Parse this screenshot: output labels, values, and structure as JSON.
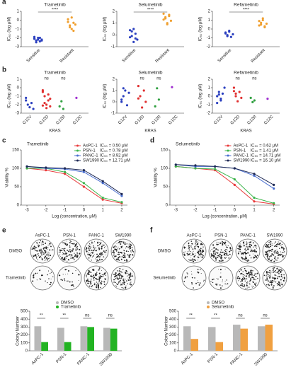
{
  "chart_data": [
    {
      "type": "dot",
      "label": "a",
      "title": "Trametinib",
      "ylabel": "IC₅₀ (log μM)",
      "categories": [
        "Sensitive",
        "Resistant"
      ],
      "values": [
        [
          -2.1,
          -2.3,
          -2.0,
          -2.4,
          -2.2,
          -1.9,
          -2.5,
          -2.2,
          -2.0,
          -2.3,
          -2.1
        ],
        [
          -0.2,
          -0.8,
          0.3,
          -1.2,
          -0.5,
          0.1,
          -0.6,
          -1.0,
          -0.3
        ]
      ],
      "colors": [
        "#2a3fbf",
        "#f0a030"
      ],
      "ylim": [
        -3,
        1
      ],
      "yticks": [
        -3,
        -2,
        -1,
        0,
        1
      ],
      "annotation": "****"
    },
    {
      "type": "dot",
      "title": "Selumetinib",
      "ylabel": "IC₅₀ (log μM)",
      "categories": [
        "Sensitive",
        "Resistant"
      ],
      "values": [
        [
          -0.2,
          0.3,
          -0.6,
          0.1,
          -0.4,
          0.4,
          -0.1,
          0.5,
          -0.3
        ],
        [
          1.8,
          1.4,
          1.0,
          1.6,
          1.2,
          1.3,
          1.5,
          0.9,
          1.7
        ]
      ],
      "colors": [
        "#2a3fbf",
        "#f0a030"
      ],
      "ylim": [
        -1,
        2
      ],
      "yticks": [
        -1,
        0,
        1,
        2
      ],
      "annotation": "****"
    },
    {
      "type": "dot",
      "title": "Refametinib",
      "ylabel": "IC₅₀ (log μM)",
      "categories": [
        "Sensitive",
        "Resistant"
      ],
      "values": [
        [
          -0.5,
          -0.7,
          -0.3,
          -0.9,
          -0.6,
          -0.4,
          -0.8,
          -0.2
        ],
        [
          0.4,
          0.7,
          1.0,
          0.2,
          0.6,
          0.9,
          0.5,
          1.2,
          0.3
        ]
      ],
      "colors": [
        "#2a3fbf",
        "#f0a030"
      ],
      "ylim": [
        -2,
        2
      ],
      "yticks": [
        -2,
        -1,
        0,
        1,
        2
      ],
      "annotation": "****"
    },
    {
      "type": "dot",
      "label": "b",
      "title": "Trametinib",
      "ylabel": "IC₅₀ (log μM)",
      "xlabel": "KRAS",
      "categories": [
        "G12V",
        "G12D",
        "G12R",
        "G12C"
      ],
      "values": [
        [
          -1.5,
          -2.0,
          -2.3,
          -1.8,
          -2.5,
          -1.2
        ],
        [
          -0.5,
          -1.0,
          -2.0,
          -1.5,
          -2.2,
          -0.3,
          -1.8,
          -2.4,
          -0.8,
          -1.3,
          -2.1
        ],
        [
          -2.2,
          -1.6,
          -2.5
        ],
        [
          -1.2
        ]
      ],
      "colors": [
        "#2a3fbf",
        "#e03030",
        "#30a040",
        "#a030d0"
      ],
      "ylim": [
        -3,
        1
      ],
      "yticks": [
        -3,
        -2,
        -1,
        0,
        1
      ],
      "annotations": [
        null,
        "ns",
        "ns",
        null
      ]
    },
    {
      "type": "dot",
      "title": "Selumetinib",
      "ylabel": "IC₅₀ (log μM)",
      "xlabel": "KRAS",
      "categories": [
        "G12V",
        "G12D",
        "G12R",
        "G12C"
      ],
      "values": [
        [
          0.0,
          0.5,
          1.0,
          -0.3,
          0.8,
          0.2,
          1.2
        ],
        [
          1.4,
          0.5,
          -0.5,
          1.0,
          0.0,
          0.3
        ],
        [
          -0.4,
          1.2,
          0.2
        ],
        [
          1.3
        ]
      ],
      "colors": [
        "#2a3fbf",
        "#e03030",
        "#30a040",
        "#a030d0"
      ],
      "ylim": [
        -1,
        2
      ],
      "yticks": [
        -1,
        0,
        1,
        2
      ],
      "annotations": [
        null,
        "ns",
        "ns",
        null
      ]
    },
    {
      "type": "dot",
      "title": "Refametinib",
      "ylabel": "IC₅₀ (log μM)",
      "xlabel": "KRAS",
      "categories": [
        "G12V",
        "G12D",
        "G12R",
        "G12C"
      ],
      "values": [
        [
          0.0,
          0.5,
          -0.5,
          0.3,
          1.0,
          -0.8,
          0.2,
          -0.3
        ],
        [
          1.0,
          0.3,
          -0.6,
          0.5,
          -0.2,
          0.6,
          0.0
        ],
        [
          -0.2,
          -0.7,
          -0.5
        ],
        [
          -0.3
        ]
      ],
      "colors": [
        "#2a3fbf",
        "#e03030",
        "#30a040",
        "#a030d0"
      ],
      "ylim": [
        -2,
        2
      ],
      "yticks": [
        -2,
        -1,
        0,
        1,
        2
      ],
      "annotations": [
        null,
        "ns",
        "ns",
        null
      ]
    },
    {
      "type": "line",
      "label": "c",
      "title": "Trametinib",
      "ylabel": "Viability %",
      "xlabel": "Log (concentration, μM)",
      "x": [
        -3,
        -2,
        -1,
        0,
        1,
        2
      ],
      "xlim": [
        -3.3,
        2.3
      ],
      "xticks": [
        -3,
        -2,
        -1,
        0,
        1,
        2
      ],
      "ylim": [
        0,
        150
      ],
      "yticks": [
        0,
        50,
        100,
        150
      ],
      "series": [
        {
          "name": "AsPC-1",
          "ic50_label": "IC₅₀ = 0.50 μM",
          "color": "#e8393a",
          "values": [
            100,
            95,
            85,
            50,
            15,
            5
          ]
        },
        {
          "name": "PSN-1",
          "ic50_label": "IC₅₀ = 0.78 μM",
          "color": "#3cb44b",
          "values": [
            100,
            100,
            90,
            60,
            20,
            8
          ]
        },
        {
          "name": "PANC-1",
          "ic50_label": "IC₅₀ = 8.92 μM",
          "color": "#4a6fd0",
          "values": [
            105,
            100,
            98,
            90,
            60,
            25
          ]
        },
        {
          "name": "SW1990",
          "ic50_label": "IC₅₀ = 12.71 μM",
          "color": "#1f2a55",
          "values": [
            105,
            102,
            100,
            95,
            65,
            30
          ]
        }
      ]
    },
    {
      "type": "line",
      "label": "d",
      "title": "Selumetinib",
      "ylabel": "Viability %",
      "xlabel": "Log (concentration, μM)",
      "x": [
        -3,
        -2,
        -1,
        0,
        1,
        2
      ],
      "xlim": [
        -3.3,
        2.3
      ],
      "xticks": [
        -3,
        -2,
        -1,
        0,
        1,
        2
      ],
      "ylim": [
        0,
        150
      ],
      "yticks": [
        0,
        50,
        100,
        150
      ],
      "series": [
        {
          "name": "AsPC-1",
          "ic50_label": "IC₅₀ = 0.62 μM",
          "color": "#e8393a",
          "values": [
            105,
            100,
            95,
            55,
            10,
            3
          ]
        },
        {
          "name": "PSN-1",
          "ic50_label": "IC₅₀ = 1.41 μM",
          "color": "#3cb44b",
          "values": [
            105,
            100,
            98,
            70,
            20,
            5
          ]
        },
        {
          "name": "PANC-1",
          "ic50_label": "IC₅₀ = 14.71 μM",
          "color": "#4a6fd0",
          "values": [
            110,
            105,
            105,
            100,
            80,
            45
          ]
        },
        {
          "name": "SW1990",
          "ic50_label": "IC₅₀ = 16.10 μM",
          "color": "#1f2a55",
          "values": [
            110,
            108,
            105,
            100,
            85,
            55
          ]
        }
      ]
    },
    {
      "type": "bar",
      "label": "e",
      "plate_rows": [
        "DMSO",
        "Trametinib"
      ],
      "plate_cols": [
        "AsPC-1",
        "PSN-1",
        "PANC-1",
        "SW1990"
      ],
      "ylabel": "Colony Number",
      "categories": [
        "AsPC-1",
        "PSN-1",
        "PANC-1",
        "SW1990"
      ],
      "ylim": [
        0,
        500
      ],
      "yticks": [
        0,
        100,
        200,
        300,
        400,
        500
      ],
      "series": [
        {
          "name": "DMSO",
          "color": "#b8b8b8",
          "values": [
            310,
            290,
            310,
            290
          ]
        },
        {
          "name": "Trametinib",
          "color": "#22b322",
          "values": [
            110,
            110,
            300,
            280
          ]
        }
      ],
      "annotations": [
        "**",
        "**",
        "ns",
        "ns"
      ]
    },
    {
      "type": "bar",
      "label": "f",
      "plate_rows": [
        "DMSO",
        "Selumetinib"
      ],
      "plate_cols": [
        "AsPC-1",
        "PSN-1",
        "PANC-1",
        "SW1990"
      ],
      "ylabel": "Colony Number",
      "categories": [
        "AsPC-1",
        "PSN-1",
        "PANC-1",
        "SW1990"
      ],
      "ylim": [
        0,
        500
      ],
      "yticks": [
        0,
        100,
        200,
        300,
        400,
        500
      ],
      "series": [
        {
          "name": "DMSO",
          "color": "#b8b8b8",
          "values": [
            310,
            300,
            330,
            310
          ]
        },
        {
          "name": "Selumetinib",
          "color": "#f0a040",
          "values": [
            150,
            110,
            280,
            330
          ]
        }
      ],
      "annotations": [
        "**",
        "**",
        "ns",
        "ns"
      ]
    }
  ]
}
